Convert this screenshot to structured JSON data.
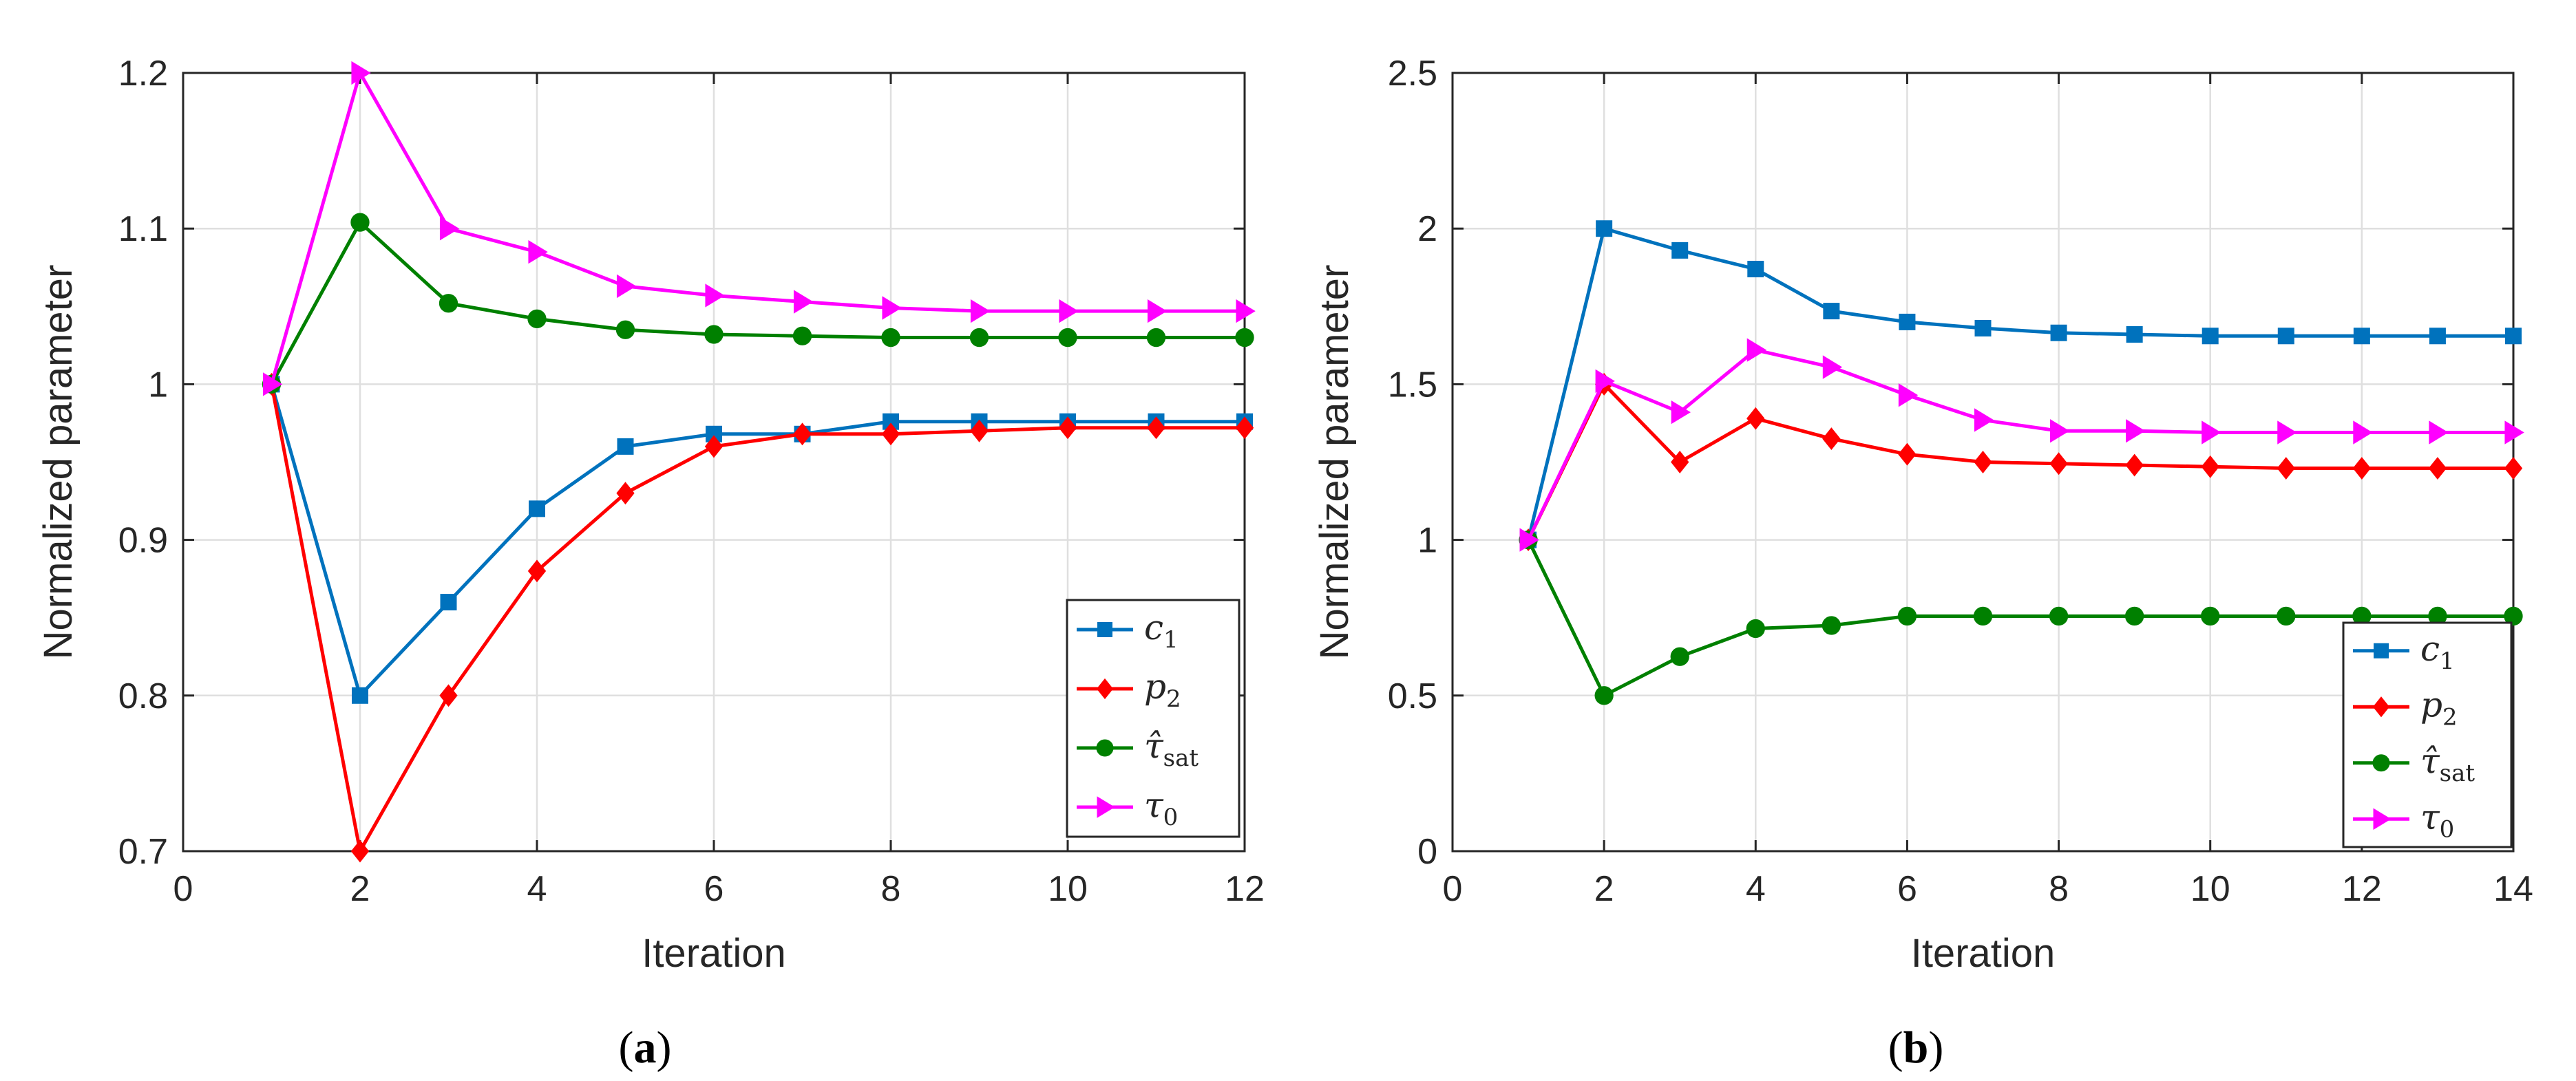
{
  "chart_data": [
    {
      "id": "a",
      "type": "line",
      "caption_letter": "a",
      "xlabel": "Iteration",
      "ylabel": "Normalized parameter",
      "xlim": [
        0,
        12
      ],
      "ylim": [
        0.7,
        1.2
      ],
      "xticks": [
        0,
        2,
        4,
        6,
        8,
        10,
        12
      ],
      "yticks": [
        0.7,
        0.8,
        0.9,
        1,
        1.1,
        1.2
      ],
      "grid": true,
      "legend_position": "bottom-right",
      "series": [
        {
          "name": "c",
          "sub": "1",
          "color": "#0072BD",
          "marker": "square",
          "x": [
            1,
            2,
            3,
            4,
            5,
            6,
            7,
            8,
            9,
            10,
            11,
            12
          ],
          "y": [
            1.0,
            0.8,
            0.86,
            0.92,
            0.96,
            0.968,
            0.968,
            0.976,
            0.976,
            0.976,
            0.976,
            0.976
          ]
        },
        {
          "name": "p",
          "sub": "2",
          "color": "#FF0000",
          "marker": "diamond",
          "x": [
            1,
            2,
            3,
            4,
            5,
            6,
            7,
            8,
            9,
            10,
            11,
            12
          ],
          "y": [
            1.0,
            0.7,
            0.8,
            0.88,
            0.93,
            0.96,
            0.968,
            0.968,
            0.97,
            0.972,
            0.972,
            0.972
          ]
        },
        {
          "name": "τ̂",
          "sub": "sat",
          "color": "#008000",
          "marker": "circle",
          "x": [
            1,
            2,
            3,
            4,
            5,
            6,
            7,
            8,
            9,
            10,
            11,
            12
          ],
          "y": [
            1.0,
            1.104,
            1.052,
            1.042,
            1.035,
            1.032,
            1.031,
            1.03,
            1.03,
            1.03,
            1.03,
            1.03
          ]
        },
        {
          "name": "τ",
          "sub": "0",
          "color": "#FF00FF",
          "marker": "triangle-right",
          "x": [
            1,
            2,
            3,
            4,
            5,
            6,
            7,
            8,
            9,
            10,
            11,
            12
          ],
          "y": [
            1.0,
            1.2,
            1.1,
            1.085,
            1.063,
            1.057,
            1.053,
            1.049,
            1.047,
            1.047,
            1.047,
            1.047
          ]
        }
      ]
    },
    {
      "id": "b",
      "type": "line",
      "caption_letter": "b",
      "xlabel": "Iteration",
      "ylabel": "Normalized parameter",
      "xlim": [
        0,
        14
      ],
      "ylim": [
        0,
        2.5
      ],
      "xticks": [
        0,
        2,
        4,
        6,
        8,
        10,
        12,
        14
      ],
      "yticks": [
        0,
        0.5,
        1,
        1.5,
        2,
        2.5
      ],
      "grid": true,
      "legend_position": "bottom-right",
      "series": [
        {
          "name": "c",
          "sub": "1",
          "color": "#0072BD",
          "marker": "square",
          "x": [
            1,
            2,
            3,
            4,
            5,
            6,
            7,
            8,
            9,
            10,
            11,
            12,
            13,
            14
          ],
          "y": [
            1.0,
            2.0,
            1.93,
            1.87,
            1.735,
            1.7,
            1.68,
            1.665,
            1.66,
            1.655,
            1.655,
            1.655,
            1.655,
            1.655
          ]
        },
        {
          "name": "p",
          "sub": "2",
          "color": "#FF0000",
          "marker": "diamond",
          "x": [
            1,
            2,
            3,
            4,
            5,
            6,
            7,
            8,
            9,
            10,
            11,
            12,
            13,
            14
          ],
          "y": [
            1.0,
            1.5,
            1.25,
            1.39,
            1.325,
            1.275,
            1.25,
            1.245,
            1.24,
            1.235,
            1.23,
            1.23,
            1.23,
            1.23
          ]
        },
        {
          "name": "τ̂",
          "sub": "sat",
          "color": "#008000",
          "marker": "circle",
          "x": [
            1,
            2,
            3,
            4,
            5,
            6,
            7,
            8,
            9,
            10,
            11,
            12,
            13,
            14
          ],
          "y": [
            1.0,
            0.5,
            0.625,
            0.715,
            0.725,
            0.755,
            0.755,
            0.755,
            0.755,
            0.755,
            0.755,
            0.755,
            0.755,
            0.755
          ]
        },
        {
          "name": "τ",
          "sub": "0",
          "color": "#FF00FF",
          "marker": "triangle-right",
          "x": [
            1,
            2,
            3,
            4,
            5,
            6,
            7,
            8,
            9,
            10,
            11,
            12,
            13,
            14
          ],
          "y": [
            1.0,
            1.51,
            1.41,
            1.61,
            1.555,
            1.465,
            1.385,
            1.35,
            1.35,
            1.345,
            1.345,
            1.345,
            1.345,
            1.345
          ]
        }
      ]
    }
  ]
}
